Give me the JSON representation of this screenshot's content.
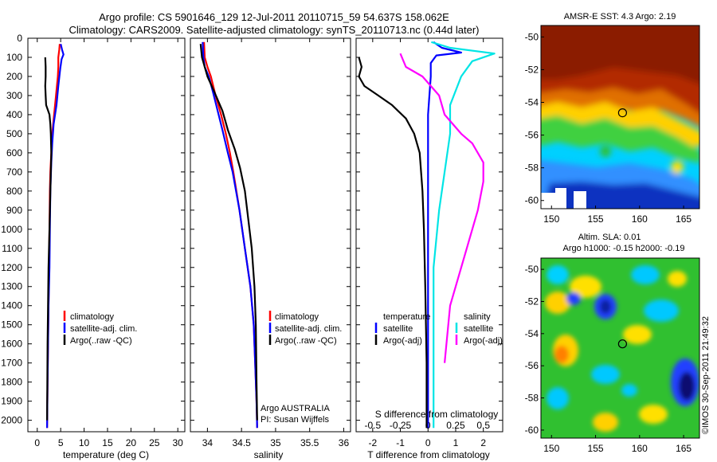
{
  "header": {
    "title_line1": "Argo profile: CS 5901646_129 12-Jul-2011 20110715_59 54.637S 158.062E",
    "title_line2": "Climatology: CARS2009. Satellite-adjusted climatology: synTS_20110713.nc (0.44d later)"
  },
  "colors": {
    "climatology": "#ff0000",
    "satellite": "#0000ff",
    "argo": "#000000",
    "sal_sat": "#00e5e5",
    "sal_argo": "#ff00ff"
  },
  "chart_data": [
    {
      "type": "line",
      "name": "temperature-panel",
      "xlabel": "temperature (deg C)",
      "xlim": [
        -2,
        31.5
      ],
      "xticks": [
        0,
        5,
        10,
        15,
        20,
        25,
        30
      ],
      "ylim": [
        2060,
        0
      ],
      "yticks": [
        0,
        100,
        200,
        300,
        400,
        500,
        600,
        700,
        800,
        900,
        1000,
        1100,
        1200,
        1300,
        1400,
        1500,
        1600,
        1700,
        1800,
        1900,
        2000
      ],
      "legend": [
        "climatology",
        "satellite-adj. clim.",
        "Argo(..raw -QC)"
      ],
      "series": [
        {
          "name": "climatology",
          "x": [
            4.8,
            4.7,
            4.5,
            4.5,
            4.4,
            4.0,
            3.6,
            3.2,
            3.0,
            2.8,
            2.7,
            2.6,
            2.5,
            2.4,
            2.3,
            2.2,
            2.1
          ],
          "y": [
            30,
            60,
            100,
            150,
            200,
            300,
            400,
            500,
            600,
            700,
            800,
            1000,
            1200,
            1400,
            1600,
            1800,
            2040
          ]
        },
        {
          "name": "satellite-adj. clim.",
          "x": [
            5.0,
            5.3,
            5.6,
            5.2,
            4.9,
            4.5,
            4.1,
            3.5,
            3.2,
            3.0,
            2.8,
            2.7,
            2.6,
            2.4,
            2.3,
            2.2,
            2.1
          ],
          "y": [
            30,
            60,
            85,
            110,
            160,
            250,
            350,
            450,
            550,
            650,
            800,
            1000,
            1200,
            1400,
            1600,
            1800,
            2040
          ]
        },
        {
          "name": "Argo(..raw -QC)",
          "x": [
            1.7,
            1.8,
            1.8,
            1.7,
            1.8,
            1.9,
            2.6,
            2.8,
            2.9,
            3.0,
            2.9,
            2.6,
            2.4,
            2.3,
            2.2,
            2.1
          ],
          "y": [
            100,
            150,
            200,
            250,
            300,
            350,
            400,
            450,
            500,
            600,
            700,
            1000,
            1200,
            1400,
            1600,
            2000
          ]
        }
      ]
    },
    {
      "type": "line",
      "name": "salinity-panel",
      "xlabel": "salinity",
      "xlim": [
        33.75,
        36.1
      ],
      "xticks": [
        34,
        34.5,
        35,
        35.5,
        36
      ],
      "ylim": [
        2060,
        0
      ],
      "legend": [
        "climatology",
        "satellite-adj. clim.",
        "Argo(..raw -QC)"
      ],
      "annotation": [
        "Argo AUSTRALIA",
        "PI: Susan Wijffels"
      ],
      "series": [
        {
          "name": "climatology",
          "x": [
            33.95,
            33.96,
            34.0,
            34.05,
            34.12,
            34.2,
            34.27,
            34.33,
            34.38,
            34.47,
            34.55,
            34.63,
            34.68,
            34.7,
            34.72,
            34.73
          ],
          "y": [
            20,
            100,
            150,
            200,
            300,
            400,
            500,
            600,
            700,
            900,
            1100,
            1300,
            1500,
            1700,
            1900,
            2040
          ]
        },
        {
          "name": "satellite-adj. clim.",
          "x": [
            33.93,
            33.94,
            33.96,
            34.02,
            34.08,
            34.15,
            34.22,
            34.3,
            34.37,
            34.47,
            34.55,
            34.63,
            34.68,
            34.7,
            34.72,
            34.73
          ],
          "y": [
            20,
            100,
            150,
            200,
            280,
            380,
            480,
            600,
            700,
            900,
            1100,
            1300,
            1500,
            1700,
            1900,
            2040
          ]
        },
        {
          "name": "Argo(..raw -QC)",
          "x": [
            33.9,
            33.92,
            34.0,
            34.1,
            34.22,
            34.3,
            34.4,
            34.48,
            34.55,
            34.6,
            34.65,
            34.69,
            34.71,
            34.72,
            34.73
          ],
          "y": [
            30,
            100,
            200,
            280,
            380,
            480,
            580,
            680,
            800,
            950,
            1100,
            1300,
            1500,
            1800,
            2000
          ]
        }
      ]
    },
    {
      "type": "line",
      "name": "difference-panel",
      "xlabel": "T difference from climatology",
      "xlabel_top": "S difference from climatology",
      "xlim": [
        -2.6,
        2.7
      ],
      "xticks": [
        -2,
        -1,
        0,
        1,
        2
      ],
      "xticks_sal": [
        -0.5,
        -0.25,
        0,
        0.25,
        0.5
      ],
      "ylim": [
        2060,
        0
      ],
      "legend_left_title": "temperature",
      "legend_right_title": "salinity",
      "legend_left": [
        "satellite",
        "Argo(-adj)"
      ],
      "legend_right": [
        "satellite",
        "Argo(-adj)"
      ],
      "series": [
        {
          "name": "satellite",
          "group": "temperature",
          "x": [
            0.2,
            0.5,
            1.2,
            0.3,
            0.1,
            0.1,
            0.0,
            0.0,
            0.0
          ],
          "y": [
            20,
            50,
            75,
            90,
            130,
            200,
            400,
            1000,
            2040
          ]
        },
        {
          "name": "Argo(-adj)",
          "group": "temperature",
          "x": [
            -2.5,
            -2.4,
            -2.5,
            -2.3,
            -1.8,
            -1.3,
            -0.8,
            -0.5,
            -0.3,
            -0.2,
            -0.15,
            -0.1,
            -0.05,
            -0.05
          ],
          "y": [
            100,
            150,
            200,
            250,
            300,
            350,
            420,
            500,
            600,
            800,
            1000,
            1300,
            1700,
            2040
          ]
        },
        {
          "name": "satellite",
          "group": "salinity",
          "x": [
            0.03,
            0.2,
            0.6,
            0.4,
            0.3,
            0.2,
            0.2,
            0.15,
            0.1,
            0.05,
            0.05
          ],
          "y": [
            20,
            50,
            80,
            120,
            200,
            350,
            500,
            700,
            900,
            1200,
            2040
          ]
        },
        {
          "name": "Argo(-adj)",
          "group": "salinity",
          "x": [
            -0.25,
            -0.2,
            -0.05,
            0.1,
            0.15,
            0.3,
            0.4,
            0.5,
            0.5,
            0.45,
            0.35,
            0.2,
            0.15
          ],
          "y": [
            80,
            150,
            200,
            300,
            400,
            500,
            550,
            650,
            750,
            900,
            1100,
            1400,
            1700
          ]
        }
      ]
    }
  ],
  "maps": {
    "top_title": "AMSR-E SST: 4.3 Argo: 2.19",
    "bottom_title_line1": "Altim. SLA: 0.01",
    "bottom_title_line2": "Argo h1000: -0.15 h2000: -0.19",
    "lon_ticks": [
      150,
      155,
      160,
      165
    ],
    "lat_ticks_top": [
      -50,
      -52,
      -54,
      -56,
      -58,
      -60
    ],
    "lat_ticks_bottom": [
      -50,
      -52,
      -54,
      -56,
      -58,
      -60
    ],
    "argo_lon": 158.062,
    "argo_lat": -54.637
  },
  "credit": "©IMOS 30-Sep-2011 21:49:32"
}
